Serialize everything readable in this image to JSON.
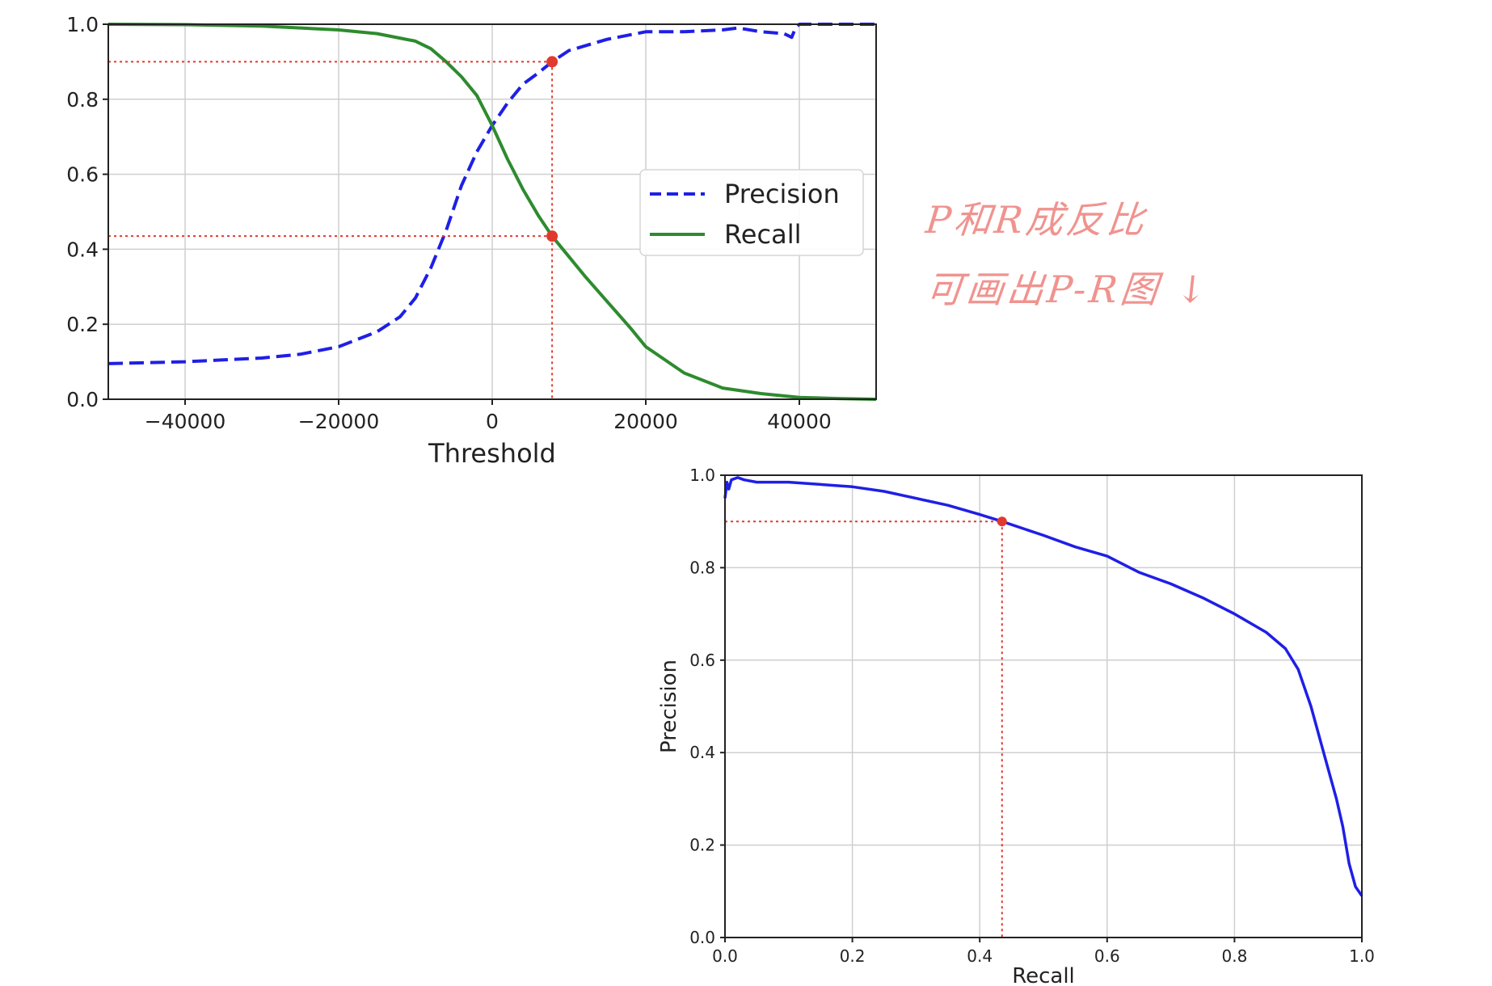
{
  "chart_data": [
    {
      "type": "line",
      "title": "",
      "xlabel": "Threshold",
      "ylabel": "",
      "xlim": [
        -50000,
        50000
      ],
      "ylim": [
        0,
        1
      ],
      "xticks": [
        -40000,
        -20000,
        0,
        20000,
        40000
      ],
      "xtick_labels": [
        "−40000",
        "−20000",
        "0",
        "20000",
        "40000"
      ],
      "yticks": [
        0,
        0.2,
        0.4,
        0.6,
        0.8,
        1.0
      ],
      "ytick_labels": [
        "0.0",
        "0.2",
        "0.4",
        "0.6",
        "0.8",
        "1.0"
      ],
      "grid": true,
      "legend": "center-right",
      "series": [
        {
          "name": "Precision",
          "color": "#1f1fe6",
          "style": "dashed",
          "x": [
            -50000,
            -40000,
            -30000,
            -25000,
            -20000,
            -15000,
            -12000,
            -10000,
            -8000,
            -6000,
            -4000,
            -2000,
            0,
            2000,
            4000,
            6000,
            7800,
            10000,
            15000,
            20000,
            25000,
            30000,
            32000,
            35000,
            38000,
            39000,
            39500,
            40000,
            50000
          ],
          "y": [
            0.095,
            0.1,
            0.11,
            0.12,
            0.14,
            0.18,
            0.22,
            0.27,
            0.35,
            0.45,
            0.57,
            0.66,
            0.73,
            0.79,
            0.84,
            0.87,
            0.9,
            0.93,
            0.96,
            0.98,
            0.98,
            0.985,
            0.99,
            0.98,
            0.975,
            0.965,
            0.99,
            1.0,
            1.0
          ]
        },
        {
          "name": "Recall",
          "color": "#2e8b2e",
          "style": "solid",
          "x": [
            -50000,
            -40000,
            -30000,
            -20000,
            -15000,
            -10000,
            -8000,
            -6000,
            -4000,
            -2000,
            0,
            2000,
            4000,
            6000,
            7800,
            10000,
            12000,
            15000,
            18000,
            20000,
            25000,
            30000,
            35000,
            40000,
            45000,
            50000
          ],
          "y": [
            1.0,
            0.999,
            0.995,
            0.985,
            0.975,
            0.955,
            0.935,
            0.9,
            0.86,
            0.81,
            0.73,
            0.64,
            0.56,
            0.49,
            0.435,
            0.38,
            0.33,
            0.26,
            0.19,
            0.14,
            0.07,
            0.03,
            0.015,
            0.005,
            0.002,
            0.0
          ]
        }
      ],
      "marker_point": {
        "x": 7800,
        "precision": 0.9,
        "recall": 0.435,
        "color": "#e03a2f"
      }
    },
    {
      "type": "line",
      "title": "",
      "xlabel": "Recall",
      "ylabel": "Precision",
      "xlim": [
        0,
        1
      ],
      "ylim": [
        0,
        1
      ],
      "xticks": [
        0,
        0.2,
        0.4,
        0.6,
        0.8,
        1.0
      ],
      "xtick_labels": [
        "0.0",
        "0.2",
        "0.4",
        "0.6",
        "0.8",
        "1.0"
      ],
      "yticks": [
        0,
        0.2,
        0.4,
        0.6,
        0.8,
        1.0
      ],
      "ytick_labels": [
        "0.0",
        "0.2",
        "0.4",
        "0.6",
        "0.8",
        "1.0"
      ],
      "grid": true,
      "series": [
        {
          "color": "#1f1fe6",
          "style": "solid",
          "x": [
            0.0,
            0.003,
            0.006,
            0.01,
            0.02,
            0.03,
            0.05,
            0.1,
            0.15,
            0.2,
            0.25,
            0.3,
            0.35,
            0.4,
            0.435,
            0.5,
            0.55,
            0.6,
            0.65,
            0.7,
            0.75,
            0.8,
            0.85,
            0.88,
            0.9,
            0.92,
            0.94,
            0.96,
            0.97,
            0.98,
            0.99,
            1.0
          ],
          "y": [
            0.95,
            0.985,
            0.97,
            0.99,
            0.995,
            0.99,
            0.985,
            0.985,
            0.98,
            0.975,
            0.965,
            0.95,
            0.935,
            0.915,
            0.9,
            0.87,
            0.845,
            0.825,
            0.79,
            0.765,
            0.735,
            0.7,
            0.66,
            0.625,
            0.58,
            0.5,
            0.4,
            0.3,
            0.24,
            0.16,
            0.11,
            0.09
          ]
        }
      ],
      "marker_point": {
        "x": 0.435,
        "y": 0.9,
        "color": "#e03a2f"
      }
    }
  ],
  "annotation": {
    "line1": "P和R成反比",
    "line2": "可画出P-R图 ↓"
  }
}
